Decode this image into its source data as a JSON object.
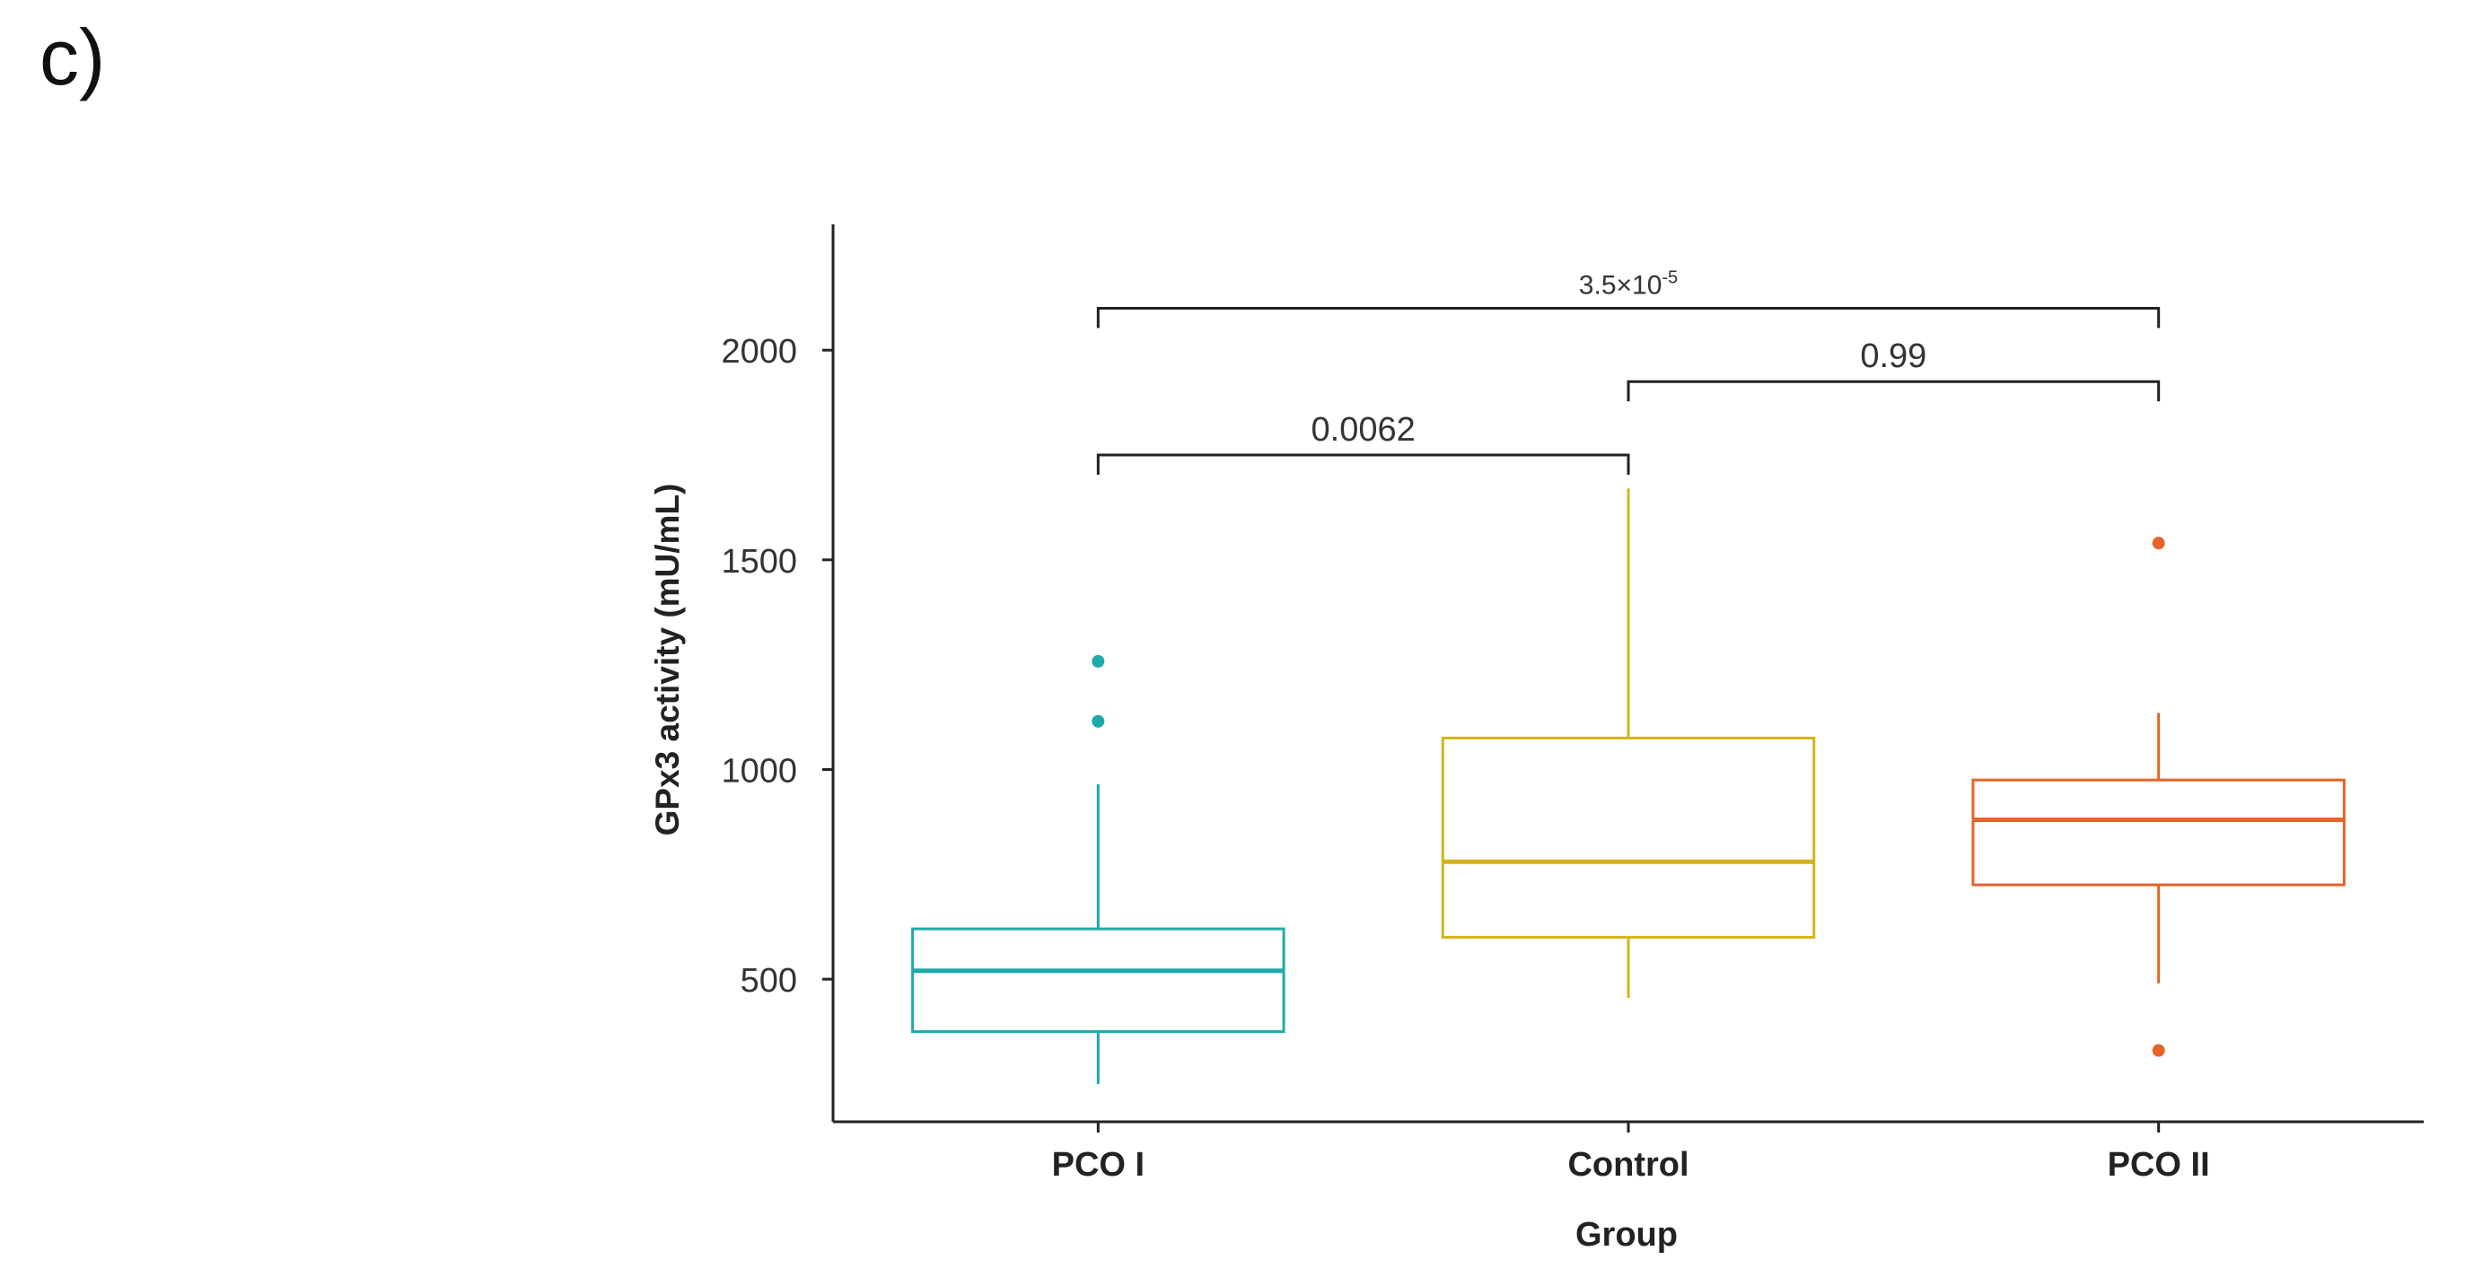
{
  "panel_label": "c)",
  "chart_data": {
    "type": "box",
    "xlabel": "Group",
    "ylabel": "GPx3 activity (mU/mL)",
    "ylim": [
      160,
      2300
    ],
    "yticks": [
      500,
      1000,
      1500,
      2000
    ],
    "categories": [
      "PCO I",
      "Control",
      "PCO II"
    ],
    "boxes": [
      {
        "name": "PCO I",
        "color": "#1fa9a9",
        "whisker_low": 250,
        "q1": 375,
        "median": 520,
        "q3": 620,
        "whisker_high": 965,
        "outliers": [
          1115,
          1258
        ]
      },
      {
        "name": "Control",
        "color": "#d4b31c",
        "whisker_low": 455,
        "q1": 600,
        "median": 780,
        "q3": 1075,
        "whisker_high": 1670,
        "outliers": []
      },
      {
        "name": "PCO II",
        "color": "#e4642a",
        "whisker_low": 490,
        "q1": 725,
        "median": 880,
        "q3": 975,
        "whisker_high": 1135,
        "outliers": [
          330,
          1540
        ]
      }
    ],
    "comparisons": [
      {
        "from": "PCO I",
        "to": "PCO II",
        "y": 2100,
        "label": "3.5×10",
        "label_sup": "-5",
        "small": true
      },
      {
        "from": "Control",
        "to": "PCO II",
        "y": 1925,
        "label": "0.99",
        "label_sup": "",
        "small": false
      },
      {
        "from": "PCO I",
        "to": "Control",
        "y": 1750,
        "label": "0.0062",
        "label_sup": "",
        "small": false
      }
    ],
    "grid": false,
    "legend": "none"
  }
}
